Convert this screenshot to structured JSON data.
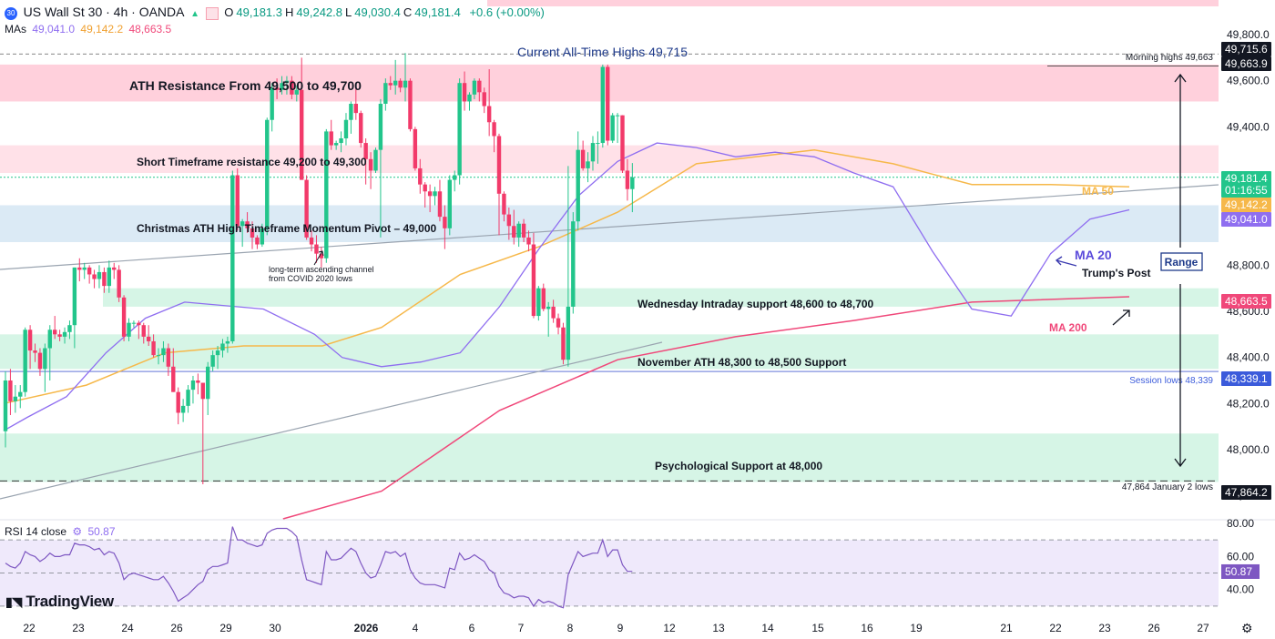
{
  "header": {
    "symbol_badge": "30",
    "title": "US Wall St 30 · 4h · OANDA",
    "ohlc": [
      {
        "k": "O",
        "v": "49,181.3"
      },
      {
        "k": "H",
        "v": "49,242.8"
      },
      {
        "k": "L",
        "v": "49,030.4"
      },
      {
        "k": "C",
        "v": "49,181.4"
      }
    ],
    "change": "+0.6 (+0.00%)",
    "mas_label": "MAs",
    "mas_values": [
      "49,041.0",
      "49,142.2",
      "48,663.5"
    ]
  },
  "rsi_header": {
    "label": "RSI 14 close",
    "value": "50.87"
  },
  "brand": "TradingView",
  "colors": {
    "up": "#22c58b",
    "down": "#f23a6a",
    "ma20": "#8f6ef0",
    "ma50": "#f6b84a",
    "ma200": "#f0487a",
    "resistance_zone": "#ffd0dc",
    "short_res_zone": "#ffe1e8",
    "pivot_zone": "#dbeaf5",
    "support_zone": "#d6f5e6",
    "accent_blue": "#2962ff"
  },
  "chart_data": {
    "type": "candlestick",
    "y_range": [
      47700,
      49950
    ],
    "y_ticks": [
      "49,800.0",
      "49,600.0",
      "49,400.0",
      "48,800.0",
      "48,600.0",
      "48,400.0",
      "48,200.0",
      "48,000.0",
      "47,800.0"
    ],
    "x_ticks": [
      "22",
      "23",
      "24",
      "26",
      "29",
      "30",
      "2026",
      "4",
      "6",
      "7",
      "8",
      "9",
      "12",
      "13",
      "14",
      "15",
      "16",
      "19",
      "21",
      "22",
      "23",
      "26",
      "27"
    ],
    "candles": [
      [
        48080,
        48340,
        48010,
        48300
      ],
      [
        48300,
        48350,
        48150,
        48210
      ],
      [
        48210,
        48280,
        48160,
        48230
      ],
      [
        48230,
        48280,
        48180,
        48250
      ],
      [
        48250,
        48530,
        48230,
        48520
      ],
      [
        48520,
        48540,
        48350,
        48430
      ],
      [
        48430,
        48460,
        48380,
        48420
      ],
      [
        48420,
        48440,
        48320,
        48350
      ],
      [
        48350,
        48460,
        48250,
        48440
      ],
      [
        48440,
        48540,
        48300,
        48520
      ],
      [
        48520,
        48580,
        48480,
        48500
      ],
      [
        48500,
        48520,
        48470,
        48490
      ],
      [
        48490,
        48530,
        48460,
        48510
      ],
      [
        48510,
        48560,
        48480,
        48540
      ],
      [
        48540,
        48790,
        48440,
        48790
      ],
      [
        48790,
        48830,
        48730,
        48780
      ],
      [
        48780,
        48810,
        48740,
        48790
      ],
      [
        48790,
        48800,
        48720,
        48760
      ],
      [
        48760,
        48780,
        48700,
        48740
      ],
      [
        48740,
        48800,
        48700,
        48770
      ],
      [
        48770,
        48790,
        48680,
        48710
      ],
      [
        48710,
        48820,
        48680,
        48790
      ],
      [
        48790,
        48810,
        48740,
        48780
      ],
      [
        48780,
        48800,
        48640,
        48660
      ],
      [
        48660,
        48670,
        48470,
        48490
      ],
      [
        48490,
        48570,
        48470,
        48550
      ],
      [
        48550,
        48560,
        48530,
        48550
      ],
      [
        48550,
        48560,
        48480,
        48540
      ],
      [
        48540,
        48550,
        48460,
        48490
      ],
      [
        48490,
        48540,
        48450,
        48470
      ],
      [
        48470,
        48500,
        48400,
        48410
      ],
      [
        48410,
        48440,
        48370,
        48410
      ],
      [
        48410,
        48470,
        48380,
        48440
      ],
      [
        48440,
        48460,
        48320,
        48360
      ],
      [
        48360,
        48440,
        48250,
        48250
      ],
      [
        48250,
        48270,
        48110,
        48160
      ],
      [
        48160,
        48220,
        48120,
        48190
      ],
      [
        48190,
        48280,
        48160,
        48260
      ],
      [
        48260,
        48320,
        48200,
        48300
      ],
      [
        48300,
        48330,
        48240,
        48290
      ],
      [
        48290,
        48290,
        47850,
        48220
      ],
      [
        48220,
        48380,
        48150,
        48360
      ],
      [
        48360,
        48430,
        48340,
        48410
      ],
      [
        48410,
        48450,
        48350,
        48430
      ],
      [
        48430,
        48480,
        48400,
        48460
      ],
      [
        48460,
        48490,
        48420,
        48470
      ],
      [
        48470,
        49210,
        48460,
        49190
      ],
      [
        49190,
        49220,
        48950,
        48970
      ],
      [
        48970,
        49000,
        48880,
        48990
      ],
      [
        48990,
        49030,
        48940,
        48960
      ],
      [
        48960,
        48990,
        48870,
        48920
      ],
      [
        48920,
        48930,
        48870,
        48890
      ],
      [
        48890,
        48980,
        48880,
        48960
      ],
      [
        48960,
        49440,
        48930,
        49430
      ],
      [
        49430,
        49590,
        49380,
        49570
      ],
      [
        49570,
        49610,
        49520,
        49560
      ],
      [
        49560,
        49620,
        49540,
        49590
      ],
      [
        49590,
        49620,
        49540,
        49600
      ],
      [
        49600,
        49620,
        49520,
        49540
      ],
      [
        49540,
        49580,
        49510,
        49560
      ],
      [
        49560,
        49700,
        49170,
        49170
      ],
      [
        49170,
        49190,
        48910,
        48920
      ],
      [
        48920,
        48950,
        48860,
        48890
      ],
      [
        48890,
        48930,
        48810,
        48850
      ],
      [
        48850,
        48880,
        48790,
        48830
      ],
      [
        48830,
        49390,
        48810,
        49380
      ],
      [
        49380,
        49430,
        49300,
        49320
      ],
      [
        49320,
        49340,
        49300,
        49330
      ],
      [
        49330,
        49380,
        49290,
        49350
      ],
      [
        49350,
        49460,
        49320,
        49430
      ],
      [
        49430,
        49510,
        49370,
        49500
      ],
      [
        49500,
        49580,
        49430,
        49460
      ],
      [
        49460,
        49470,
        49310,
        49330
      ],
      [
        49330,
        49350,
        49150,
        49260
      ],
      [
        49260,
        49290,
        49130,
        49210
      ],
      [
        49210,
        49310,
        49200,
        49300
      ],
      [
        49300,
        49520,
        48920,
        49500
      ],
      [
        49500,
        49610,
        49470,
        49590
      ],
      [
        49590,
        49620,
        49560,
        49580
      ],
      [
        49580,
        49690,
        49540,
        49600
      ],
      [
        49600,
        49610,
        49550,
        49570
      ],
      [
        49570,
        49720,
        49510,
        49600
      ],
      [
        49600,
        49610,
        49380,
        49390
      ],
      [
        49390,
        49400,
        49210,
        49220
      ],
      [
        49220,
        49260,
        49110,
        49150
      ],
      [
        49150,
        49160,
        49050,
        49120
      ],
      [
        49120,
        49150,
        49030,
        49100
      ],
      [
        49100,
        49140,
        49060,
        49120
      ],
      [
        49120,
        49170,
        48990,
        49010
      ],
      [
        49010,
        49060,
        48870,
        48960
      ],
      [
        48960,
        49190,
        48930,
        49170
      ],
      [
        49170,
        49210,
        49120,
        49190
      ],
      [
        49190,
        49610,
        49150,
        49590
      ],
      [
        49590,
        49640,
        49470,
        49510
      ],
      [
        49510,
        49550,
        49470,
        49540
      ],
      [
        49540,
        49610,
        49520,
        49600
      ],
      [
        49600,
        49610,
        49510,
        49550
      ],
      [
        49550,
        49570,
        49460,
        49490
      ],
      [
        49490,
        49650,
        49360,
        49420
      ],
      [
        49420,
        49430,
        49290,
        49360
      ],
      [
        49360,
        49370,
        48930,
        49110
      ],
      [
        49110,
        49120,
        48990,
        49020
      ],
      [
        49020,
        49050,
        48910,
        48970
      ],
      [
        48970,
        49040,
        48890,
        48920
      ],
      [
        48920,
        48990,
        48880,
        48980
      ],
      [
        48980,
        49000,
        48900,
        48920
      ],
      [
        48920,
        48950,
        48860,
        48890
      ],
      [
        48890,
        48940,
        48570,
        48580
      ],
      [
        48580,
        48710,
        48560,
        48700
      ],
      [
        48700,
        48720,
        48600,
        48610
      ],
      [
        48610,
        48640,
        48490,
        48620
      ],
      [
        48620,
        48650,
        48550,
        48570
      ],
      [
        48570,
        48590,
        48500,
        48530
      ],
      [
        48530,
        48550,
        48370,
        48390
      ],
      [
        48390,
        49230,
        48360,
        48620
      ],
      [
        48620,
        49030,
        48590,
        48990
      ],
      [
        48990,
        49380,
        48950,
        49300
      ],
      [
        49300,
        49340,
        49210,
        49220
      ],
      [
        49220,
        49290,
        49160,
        49250
      ],
      [
        49250,
        49360,
        49210,
        49330
      ],
      [
        49330,
        49380,
        49240,
        49330
      ],
      [
        49330,
        49670,
        49310,
        49660
      ],
      [
        49660,
        49670,
        49320,
        49340
      ],
      [
        49340,
        49460,
        49330,
        49450
      ],
      [
        49450,
        49460,
        49330,
        49450
      ],
      [
        49450,
        49450,
        49200,
        49210
      ],
      [
        49210,
        49260,
        49080,
        49130
      ],
      [
        49130,
        49243,
        49030,
        49181
      ]
    ],
    "ma20": [
      [
        48080,
        48082
      ],
      [
        48200,
        48140
      ],
      [
        48400,
        48230
      ],
      [
        48600,
        48420
      ],
      [
        48800,
        48570
      ],
      [
        49000,
        48640
      ],
      [
        49400,
        48610
      ],
      [
        49660,
        48500
      ],
      [
        49800,
        48400
      ],
      [
        50000,
        48360
      ],
      [
        50200,
        48380
      ],
      [
        50400,
        48420
      ],
      [
        50600,
        48620
      ],
      [
        50800,
        48870
      ],
      [
        51000,
        49100
      ],
      [
        51200,
        49250
      ],
      [
        51400,
        49330
      ],
      [
        51600,
        49310
      ],
      [
        51800,
        49270
      ],
      [
        52000,
        49290
      ],
      [
        52200,
        49270
      ],
      [
        52400,
        49200
      ],
      [
        52600,
        49140
      ],
      [
        52800,
        48860
      ],
      [
        53000,
        48610
      ],
      [
        53200,
        48580
      ],
      [
        53400,
        48850
      ],
      [
        53600,
        49000
      ],
      [
        53800,
        49040
      ]
    ],
    "ma50": [
      [
        48080,
        48200
      ],
      [
        48500,
        48280
      ],
      [
        48900,
        48420
      ],
      [
        49300,
        48450
      ],
      [
        49700,
        48450
      ],
      [
        50000,
        48530
      ],
      [
        50400,
        48760
      ],
      [
        50800,
        48880
      ],
      [
        51200,
        49030
      ],
      [
        51600,
        49240
      ],
      [
        52000,
        49280
      ],
      [
        52200,
        49300
      ],
      [
        52600,
        49240
      ],
      [
        53000,
        49150
      ],
      [
        53400,
        49150
      ],
      [
        53800,
        49140
      ]
    ],
    "ma200": [
      [
        49500,
        47700
      ],
      [
        50000,
        47820
      ],
      [
        50600,
        48170
      ],
      [
        51200,
        48390
      ],
      [
        51800,
        48490
      ],
      [
        52400,
        48560
      ],
      [
        53000,
        48640
      ],
      [
        53800,
        48663
      ]
    ],
    "trendlines": [
      {
        "name": "ascending channel top",
        "points": [
          [
            48080,
            48770
          ],
          [
            53800,
            49210
          ]
        ]
      },
      {
        "name": "ascending channel bottom",
        "points": [
          [
            48080,
            47850
          ],
          [
            49700,
            48520
          ]
        ]
      }
    ],
    "zones": [
      {
        "label": "ATH Resistance From 49,500 to 49,700",
        "from": 49510,
        "to": 49670,
        "color": "resistance"
      },
      {
        "label": "Short Timeframe resistance 49,200 to 49,300",
        "from": 49200,
        "to": 49320,
        "color": "short"
      },
      {
        "label": "Christmas ATH High Timeframe Momentum Pivot – 49,000",
        "from": 48900,
        "to": 49060,
        "color": "pivot"
      },
      {
        "label": "Wednesday Intraday support 48,600 to 48,700",
        "from": 48620,
        "to": 48700,
        "color": "support"
      },
      {
        "label": "November ATH 48,300 to 48,500 Support",
        "from": 48350,
        "to": 48500,
        "color": "support"
      },
      {
        "label": "Psychological Support at 48,000",
        "from": 47860,
        "to": 48070,
        "color": "support"
      }
    ],
    "levels": [
      {
        "label": "Current All-Time Highs 49,715",
        "value": 49715.6
      },
      {
        "label": "Morning highs 49,663",
        "value": 49663.9
      },
      {
        "label": "Session lows 48,339",
        "value": 48339.1
      },
      {
        "label": "47,864 January 2 lows",
        "value": 47864.2
      }
    ],
    "price_tags": [
      {
        "text": "49,715.6",
        "value": 49715.6,
        "bg": "#131722"
      },
      {
        "text": "49,663.9",
        "value": 49663.9,
        "bg": "#131722"
      },
      {
        "text": "49,181.4",
        "value": 49181.4,
        "bg": "#22c58b"
      },
      {
        "text": "01:16:55",
        "value": 49181.4,
        "bg": "#22c58b"
      },
      {
        "text": "49,142.2",
        "value": 49142.2,
        "bg": "#f6b84a"
      },
      {
        "text": "49,041.0",
        "value": 49041.0,
        "bg": "#8f6ef0"
      },
      {
        "text": "48,663.5",
        "value": 48663.5,
        "bg": "#f0487a"
      },
      {
        "text": "48,339.1",
        "value": 48339.1,
        "bg": "#3b5bdb"
      },
      {
        "text": "47,864.2",
        "value": 47864.2,
        "bg": "#131722"
      }
    ],
    "annotations": [
      {
        "text": "long-term ascending channel",
        "value": 48800
      },
      {
        "text": "from COVID 2020 lows",
        "value": 48770
      },
      {
        "text": "MA 50",
        "value": 49140
      },
      {
        "text": "MA 20",
        "value": 48860
      },
      {
        "text": "Trump's Post",
        "value": 48780
      },
      {
        "text": "Range",
        "value": 48830
      },
      {
        "text": "MA 200",
        "value": 48560
      }
    ],
    "rsi": {
      "ylim": [
        25,
        80
      ],
      "ticks": [
        "80.00",
        "60.00",
        "40.00"
      ],
      "overbought": 70,
      "oversold": 30,
      "mid": 50,
      "values": [
        56,
        54,
        53,
        56,
        63,
        61,
        60,
        57,
        59,
        62,
        60,
        60,
        61,
        61,
        68,
        67,
        67,
        66,
        64,
        65,
        61,
        63,
        62,
        56,
        46,
        49,
        50,
        49,
        48,
        47,
        46,
        46,
        48,
        44,
        39,
        33,
        35,
        37,
        40,
        43,
        45,
        52,
        54,
        54,
        55,
        56,
        78,
        70,
        70,
        68,
        67,
        66,
        67,
        74,
        76,
        77,
        77,
        77,
        75,
        72,
        58,
        46,
        45,
        44,
        43,
        63,
        58,
        58,
        59,
        62,
        65,
        63,
        56,
        50,
        47,
        48,
        55,
        63,
        62,
        63,
        60,
        62,
        52,
        47,
        44,
        43,
        43,
        43,
        42,
        41,
        53,
        52,
        62,
        58,
        59,
        61,
        59,
        57,
        52,
        50,
        42,
        38,
        37,
        35,
        36,
        36,
        35,
        30,
        34,
        32,
        33,
        32,
        30,
        29,
        49,
        56,
        63,
        60,
        61,
        62,
        62,
        70,
        60,
        64,
        64,
        55,
        51,
        51
      ]
    }
  }
}
